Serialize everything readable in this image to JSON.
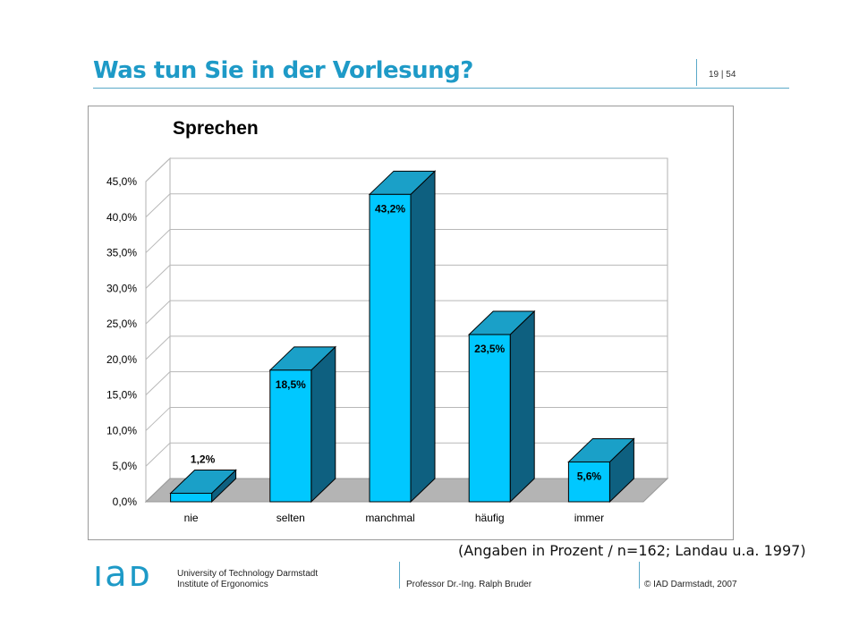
{
  "slide": {
    "title": "Was tun Sie in der Vorlesung?",
    "page_number": "19 | 54",
    "source_note": "(Angaben in Prozent / n=162; Landau u.a. 1997)"
  },
  "footer": {
    "logo_text": "IAD",
    "university_line1": "University of Technology Darmstadt",
    "university_line2": "Institute of Ergonomics",
    "professor": "Professor Dr.-Ing. Ralph Bruder",
    "copyright": "© IAD Darmstadt, 2007"
  },
  "colors": {
    "accent": "#1e9ac7",
    "bar_front": "#00c8ff",
    "bar_top": "#1aa0c8",
    "bar_side": "#0e6080",
    "floor": "#b4b4b4"
  },
  "chart_data": {
    "type": "bar",
    "title": "Sprechen",
    "categories": [
      "nie",
      "selten",
      "manchmal",
      "häufig",
      "immer"
    ],
    "values": [
      1.2,
      18.5,
      43.2,
      23.5,
      5.6
    ],
    "value_labels": [
      "1,2%",
      "18,5%",
      "43,2%",
      "23,5%",
      "5,6%"
    ],
    "y_ticks": [
      "0,0%",
      "5,0%",
      "10,0%",
      "15,0%",
      "20,0%",
      "25,0%",
      "30,0%",
      "35,0%",
      "40,0%",
      "45,0%"
    ],
    "ylim": [
      0,
      45
    ],
    "grid": true,
    "style": "3d"
  }
}
